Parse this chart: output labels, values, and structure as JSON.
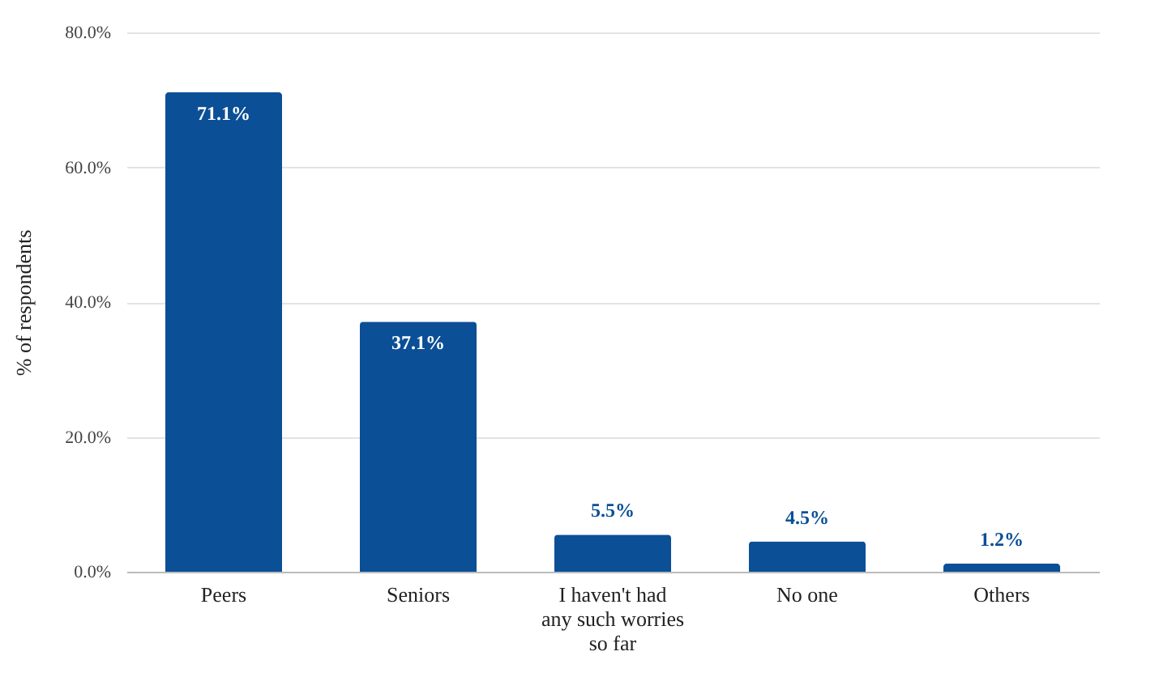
{
  "chart_data": {
    "type": "bar",
    "ylabel": "% of respondents",
    "categories": [
      "Peers",
      "Seniors",
      "I haven't had any such worries so far",
      "No one",
      "Others"
    ],
    "values": [
      71.1,
      37.1,
      5.5,
      4.5,
      1.2
    ],
    "value_labels": [
      "71.1%",
      "37.1%",
      "5.5%",
      "4.5%",
      "1.2%"
    ],
    "color": "#0b4f96",
    "ylim": [
      0,
      80
    ],
    "yticks": [
      {
        "value": 0,
        "label": "0.0%"
      },
      {
        "value": 20,
        "label": "20.0%"
      },
      {
        "value": 40,
        "label": "40.0%"
      },
      {
        "value": 60,
        "label": "60.0%"
      },
      {
        "value": 80,
        "label": "80.0%"
      }
    ],
    "grid": "y"
  }
}
